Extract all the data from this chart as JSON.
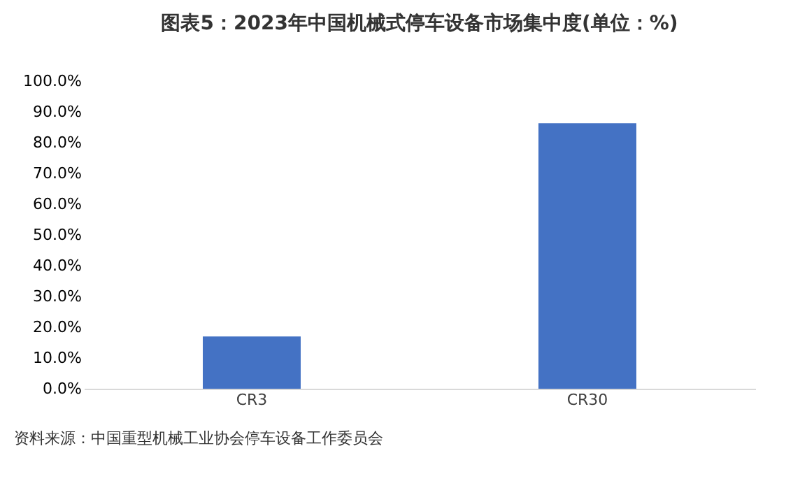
{
  "chart_data": {
    "type": "bar",
    "title": "图表5：2023年中国机械式停车设备市场集中度(单位：%)",
    "categories": [
      "CR3",
      "CR30"
    ],
    "values": [
      17.0,
      86.3
    ],
    "color": "#4472c4",
    "ylim": [
      0,
      100
    ],
    "yticks": [
      {
        "value": 0,
        "label": "0.0%"
      },
      {
        "value": 10,
        "label": "10.0%"
      },
      {
        "value": 20,
        "label": "20.0%"
      },
      {
        "value": 30,
        "label": "30.0%"
      },
      {
        "value": 40,
        "label": "40.0%"
      },
      {
        "value": 50,
        "label": "50.0%"
      },
      {
        "value": 60,
        "label": "60.0%"
      },
      {
        "value": 70,
        "label": "70.0%"
      },
      {
        "value": 80,
        "label": "80.0%"
      },
      {
        "value": 90,
        "label": "90.0%"
      },
      {
        "value": 100,
        "label": "100.0%"
      }
    ],
    "grid": false,
    "annotations": [
      "资料来源：中国重型机械工业协会停车设备工作委员会"
    ]
  }
}
